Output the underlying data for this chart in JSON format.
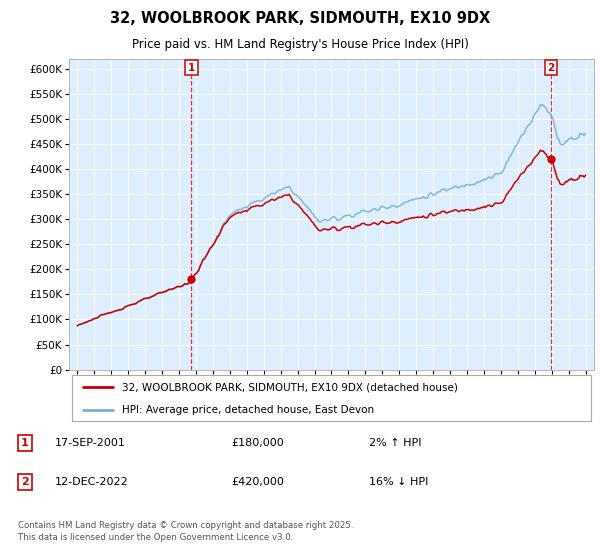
{
  "title": "32, WOOLBROOK PARK, SIDMOUTH, EX10 9DX",
  "subtitle": "Price paid vs. HM Land Registry's House Price Index (HPI)",
  "ylim": [
    0,
    620000
  ],
  "yticks": [
    0,
    50000,
    100000,
    150000,
    200000,
    250000,
    300000,
    350000,
    400000,
    450000,
    500000,
    550000,
    600000
  ],
  "xlim_start": 1994.5,
  "xlim_end": 2025.5,
  "xticks": [
    1995,
    1996,
    1997,
    1998,
    1999,
    2000,
    2001,
    2002,
    2003,
    2004,
    2005,
    2006,
    2007,
    2008,
    2009,
    2010,
    2011,
    2012,
    2013,
    2014,
    2015,
    2016,
    2017,
    2018,
    2019,
    2020,
    2021,
    2022,
    2023,
    2024,
    2025
  ],
  "sale1_x": 2001.72,
  "sale1_y": 180000,
  "sale2_x": 2022.95,
  "sale2_y": 420000,
  "legend_line1": "32, WOOLBROOK PARK, SIDMOUTH, EX10 9DX (detached house)",
  "legend_line2": "HPI: Average price, detached house, East Devon",
  "footer": "Contains HM Land Registry data © Crown copyright and database right 2025.\nThis data is licensed under the Open Government Licence v3.0.",
  "line_color_red": "#cc0000",
  "line_color_blue": "#7ab0d4",
  "plot_bg_color": "#ddeeff",
  "grid_color": "#ffffff"
}
